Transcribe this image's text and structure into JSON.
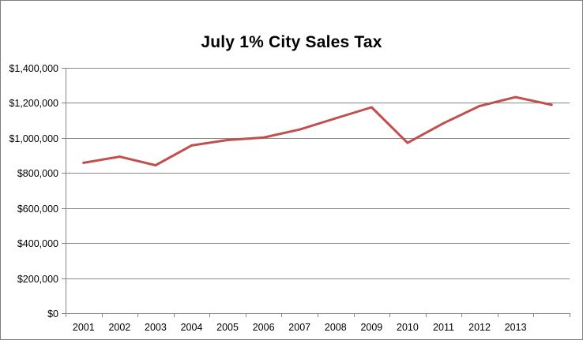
{
  "chart_data": {
    "type": "line",
    "title": "July 1% City Sales Tax",
    "xlabel": "",
    "ylabel": "",
    "categories": [
      "2001",
      "2002",
      "2003",
      "2004",
      "2005",
      "2006",
      "2007",
      "2008",
      "2009",
      "2010",
      "2011",
      "2012",
      "2013",
      ""
    ],
    "series": [
      {
        "values": [
          858000,
          893000,
          844000,
          957000,
          988000,
          1002000,
          1048000,
          1112000,
          1175000,
          972000,
          1084000,
          1182000,
          1233000,
          1189000
        ]
      }
    ],
    "ylim": [
      0,
      1400000
    ],
    "yticks": [
      0,
      200000,
      400000,
      600000,
      800000,
      1000000,
      1200000,
      1400000
    ],
    "ytick_labels": [
      "$0",
      "$200,000",
      "$400,000",
      "$600,000",
      "$800,000",
      "$1,000,000",
      "$1,200,000",
      "$1,400,000"
    ],
    "grid": true,
    "legend": "none",
    "colors": {
      "line": "#c0504d",
      "grid": "#868686",
      "axis": "#868686"
    }
  }
}
